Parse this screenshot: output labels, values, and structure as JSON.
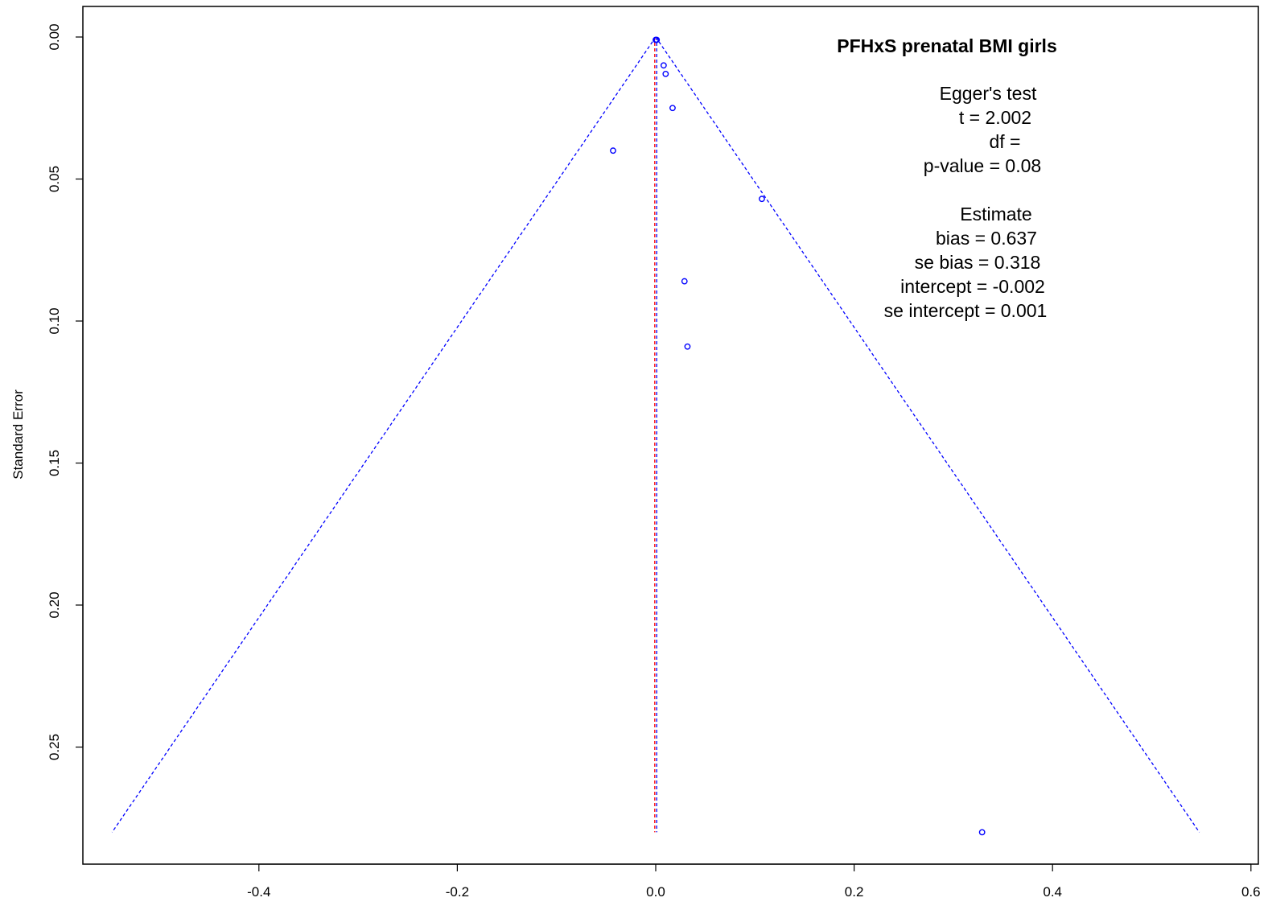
{
  "chart_data": {
    "type": "scatter",
    "subtype": "funnel",
    "title": "PFHxS prenatal BMI girls",
    "xlabel": "",
    "ylabel": "Standard Error",
    "xlim": [
      -0.575,
      0.6
    ],
    "ylim": [
      0.0,
      0.29
    ],
    "y_reversed": true,
    "x_ticks": [
      -0.4,
      -0.2,
      0.0,
      0.2,
      0.4,
      0.6
    ],
    "x_tick_labels": [
      "-0.4",
      "-0.2",
      "0.0",
      "0.2",
      "0.4",
      "0.6"
    ],
    "y_ticks": [
      0.0,
      0.05,
      0.1,
      0.15,
      0.2,
      0.25
    ],
    "y_tick_labels": [
      "0.00",
      "0.05",
      "0.10",
      "0.15",
      "0.20",
      "0.25"
    ],
    "grid": false,
    "points": [
      {
        "x": 0.0,
        "y": 0.001
      },
      {
        "x": 0.001,
        "y": 0.001
      },
      {
        "x": 0.008,
        "y": 0.01
      },
      {
        "x": 0.01,
        "y": 0.013
      },
      {
        "x": 0.017,
        "y": 0.025
      },
      {
        "x": -0.043,
        "y": 0.04
      },
      {
        "x": 0.107,
        "y": 0.057
      },
      {
        "x": 0.029,
        "y": 0.086
      },
      {
        "x": 0.032,
        "y": 0.109
      },
      {
        "x": 0.329,
        "y": 0.28
      }
    ],
    "funnel": {
      "apex": {
        "x": 0.0,
        "y": 0.0
      },
      "left_base": {
        "x": -0.548,
        "y": 0.28
      },
      "right_base": {
        "x": 0.548,
        "y": 0.28
      },
      "center_x": 0.0,
      "center_y_end": 0.28
    },
    "colors": {
      "points": "#0000ff",
      "funnel": "#0000ff",
      "center_line_a": "#ff0000",
      "center_line_b": "#0000ff",
      "axes": "#000000"
    },
    "annotations": {
      "egger_heading": "Egger's test",
      "t_value": "t = 2.002",
      "df_value": "df =",
      "p_value": "p-value = 0.08",
      "estimate_heading": "Estimate",
      "bias": "bias = 0.637",
      "se_bias": "se bias = 0.318",
      "intercept": "intercept = -0.002",
      "se_intercept": "se intercept = 0.001"
    }
  }
}
